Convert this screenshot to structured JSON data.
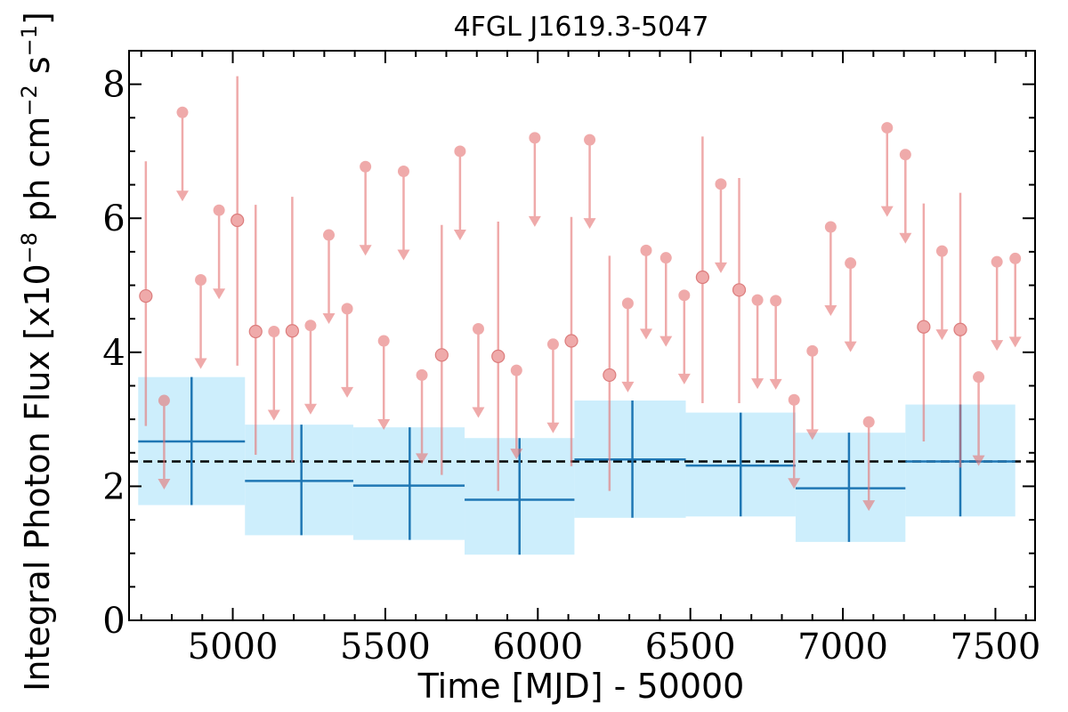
{
  "chart_data": {
    "type": "scatter",
    "title": "4FGL J1619.3-5047",
    "xlabel": "Time [MJD] - 50000",
    "ylabel_main": "Integral Photon Flux [x10",
    "ylabel_exp1": "−8",
    "ylabel_mid": " ph cm",
    "ylabel_exp2": "−2",
    "ylabel_mid2": " s",
    "ylabel_exp3": "−1",
    "ylabel_end": "]",
    "xlim": [
      4660,
      7630
    ],
    "ylim": [
      0,
      8.5
    ],
    "xticks": [
      5000,
      5500,
      6000,
      6500,
      7000,
      7500
    ],
    "yticks": [
      0,
      2,
      4,
      6,
      8
    ],
    "grid": false,
    "mean_flux": 2.37,
    "colors": {
      "detection": "#e57373",
      "binned_line": "#1f77b4",
      "binned_band": "#cdeefc",
      "mean_line": "#000000"
    },
    "binned_points": [
      {
        "x": 4865,
        "xlo": 4690,
        "xhi": 5040,
        "y": 2.67,
        "ylo": 1.72,
        "yhi": 3.63,
        "band_lo": 1.72,
        "band_hi": 3.63
      },
      {
        "x": 5225,
        "xlo": 5040,
        "xhi": 5395,
        "y": 2.08,
        "ylo": 1.27,
        "yhi": 2.92,
        "band_lo": 1.27,
        "band_hi": 2.92
      },
      {
        "x": 5580,
        "xlo": 5395,
        "xhi": 5760,
        "y": 2.01,
        "ylo": 1.2,
        "yhi": 2.88,
        "band_lo": 1.2,
        "band_hi": 2.88
      },
      {
        "x": 5940,
        "xlo": 5760,
        "xhi": 6120,
        "y": 1.8,
        "ylo": 0.98,
        "yhi": 2.72,
        "band_lo": 0.98,
        "band_hi": 2.72
      },
      {
        "x": 6310,
        "xlo": 6120,
        "xhi": 6485,
        "y": 2.4,
        "ylo": 1.53,
        "yhi": 3.28,
        "band_lo": 1.53,
        "band_hi": 3.28
      },
      {
        "x": 6665,
        "xlo": 6485,
        "xhi": 6845,
        "y": 2.31,
        "ylo": 1.55,
        "yhi": 3.1,
        "band_lo": 1.55,
        "band_hi": 3.1
      },
      {
        "x": 7020,
        "xlo": 6845,
        "xhi": 7205,
        "y": 1.97,
        "ylo": 1.17,
        "yhi": 2.8,
        "band_lo": 1.17,
        "band_hi": 2.8
      },
      {
        "x": 7385,
        "xlo": 7205,
        "xhi": 7565,
        "y": 2.37,
        "ylo": 1.55,
        "yhi": 3.22,
        "band_lo": 1.55,
        "band_hi": 3.22
      }
    ],
    "detections": [
      {
        "x": 4715,
        "y": 4.84,
        "ylo": 2.9,
        "yhi": 6.85
      },
      {
        "x": 5015,
        "y": 5.97,
        "ylo": 3.8,
        "yhi": 8.12
      },
      {
        "x": 5075,
        "y": 4.31,
        "ylo": 2.47,
        "yhi": 6.2
      },
      {
        "x": 5195,
        "y": 4.32,
        "ylo": 2.36,
        "yhi": 6.32
      },
      {
        "x": 5685,
        "y": 3.96,
        "ylo": 2.17,
        "yhi": 5.9
      },
      {
        "x": 5870,
        "y": 3.94,
        "ylo": 1.93,
        "yhi": 5.95
      },
      {
        "x": 6110,
        "y": 4.17,
        "ylo": 2.3,
        "yhi": 6.02
      },
      {
        "x": 6235,
        "y": 3.66,
        "ylo": 1.93,
        "yhi": 5.44
      },
      {
        "x": 6540,
        "y": 5.12,
        "ylo": 3.24,
        "yhi": 7.22
      },
      {
        "x": 6660,
        "y": 4.93,
        "ylo": 3.24,
        "yhi": 6.6
      },
      {
        "x": 7265,
        "y": 4.38,
        "ylo": 2.67,
        "yhi": 6.22
      },
      {
        "x": 7385,
        "y": 4.34,
        "ylo": 2.28,
        "yhi": 6.38
      }
    ],
    "upper_limits": [
      {
        "x": 4775,
        "y": 3.28
      },
      {
        "x": 4835,
        "y": 7.58
      },
      {
        "x": 4895,
        "y": 5.08
      },
      {
        "x": 4955,
        "y": 6.12
      },
      {
        "x": 5135,
        "y": 4.31
      },
      {
        "x": 5255,
        "y": 4.4
      },
      {
        "x": 5315,
        "y": 5.75
      },
      {
        "x": 5375,
        "y": 4.65
      },
      {
        "x": 5435,
        "y": 6.77
      },
      {
        "x": 5495,
        "y": 4.17
      },
      {
        "x": 5560,
        "y": 6.7
      },
      {
        "x": 5620,
        "y": 3.66
      },
      {
        "x": 5745,
        "y": 7.0
      },
      {
        "x": 5805,
        "y": 4.35
      },
      {
        "x": 5930,
        "y": 3.73
      },
      {
        "x": 5990,
        "y": 7.2
      },
      {
        "x": 6050,
        "y": 4.12
      },
      {
        "x": 6170,
        "y": 7.17
      },
      {
        "x": 6295,
        "y": 4.73
      },
      {
        "x": 6355,
        "y": 5.52
      },
      {
        "x": 6420,
        "y": 5.41
      },
      {
        "x": 6480,
        "y": 4.85
      },
      {
        "x": 6600,
        "y": 6.51
      },
      {
        "x": 6720,
        "y": 4.78
      },
      {
        "x": 6780,
        "y": 4.77
      },
      {
        "x": 6840,
        "y": 3.29
      },
      {
        "x": 6900,
        "y": 4.02
      },
      {
        "x": 6960,
        "y": 5.87
      },
      {
        "x": 7025,
        "y": 5.33
      },
      {
        "x": 7085,
        "y": 2.96
      },
      {
        "x": 7145,
        "y": 7.35
      },
      {
        "x": 7205,
        "y": 6.95
      },
      {
        "x": 7325,
        "y": 5.51
      },
      {
        "x": 7445,
        "y": 3.63
      },
      {
        "x": 7505,
        "y": 5.35
      },
      {
        "x": 7565,
        "y": 5.4
      }
    ]
  }
}
